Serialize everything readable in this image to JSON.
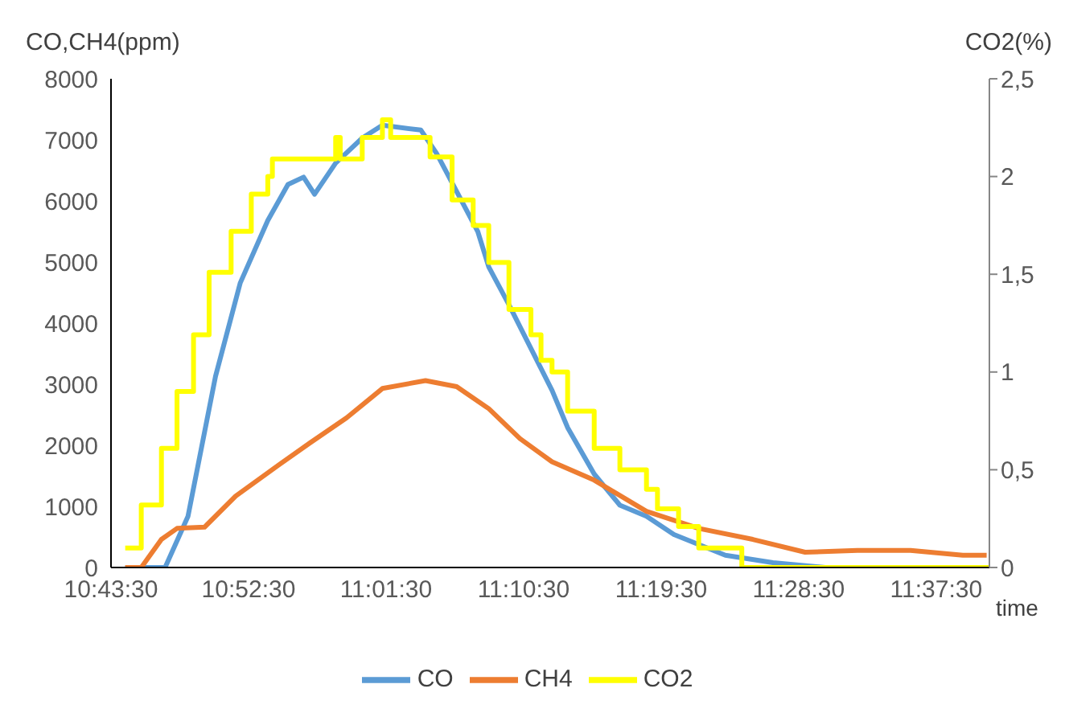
{
  "chart_data": {
    "type": "line",
    "xlabel": "time",
    "ylabel": "CO,CH4(ppm)",
    "y2label": "CO2(%)",
    "xlim": [
      10.725,
      11.683
    ],
    "xticks": [
      {
        "value": 10.725,
        "label": "10:43:30"
      },
      {
        "value": 10.875,
        "label": "10:52:30"
      },
      {
        "value": 11.025,
        "label": "11:01:30"
      },
      {
        "value": 11.175,
        "label": "11:10:30"
      },
      {
        "value": 11.325,
        "label": "11:19:30"
      },
      {
        "value": 11.475,
        "label": "11:28:30"
      },
      {
        "value": 11.625,
        "label": "11:37:30"
      }
    ],
    "ylim": [
      0,
      8000
    ],
    "yticks": [
      0,
      1000,
      2000,
      3000,
      4000,
      5000,
      6000,
      7000,
      8000
    ],
    "y2lim": [
      0,
      2.5
    ],
    "y2ticks": [
      0,
      {
        "value": 0.5,
        "label": "0,5"
      },
      1,
      {
        "value": 1.5,
        "label": "1,5"
      },
      2,
      {
        "value": 2.5,
        "label": "2,5"
      }
    ],
    "marker": "none",
    "legend": "bottom",
    "series": [
      {
        "name": "CO",
        "color": "#5b9bd5",
        "x": [
          10.7405,
          10.784,
          10.809,
          10.839,
          10.866,
          10.896,
          10.918,
          10.935,
          10.947,
          10.97,
          10.999,
          11.021,
          11.063,
          11.08,
          11.125,
          11.137,
          11.159,
          11.206,
          11.223,
          11.252,
          11.28,
          11.309,
          11.339,
          11.395,
          11.447,
          11.504
        ],
        "values": [
          0,
          0,
          840,
          3130,
          4660,
          5680,
          6270,
          6390,
          6110,
          6620,
          7030,
          7240,
          7160,
          6780,
          5500,
          4920,
          4300,
          2900,
          2290,
          1530,
          1020,
          840,
          540,
          200,
          80,
          0
        ]
      },
      {
        "name": "CH4",
        "color": "#ed7d31",
        "x": [
          10.7405,
          10.758,
          10.78,
          10.797,
          10.827,
          10.861,
          10.908,
          10.942,
          10.982,
          11.021,
          11.068,
          11.102,
          11.137,
          11.171,
          11.194,
          11.206,
          11.252,
          11.309,
          11.366,
          11.425,
          11.482,
          11.539,
          11.597,
          11.654,
          11.68
        ],
        "values": [
          0,
          0,
          460,
          640,
          660,
          1170,
          1680,
          2040,
          2450,
          2930,
          3060,
          2960,
          2600,
          2110,
          1860,
          1730,
          1430,
          920,
          640,
          460,
          250,
          280,
          280,
          200,
          200
        ]
      },
      {
        "name": "CO2",
        "color": "#ffff00",
        "type": "step",
        "axis": "y2",
        "x": [
          10.7405,
          10.758,
          10.78,
          10.797,
          10.815,
          10.832,
          10.856,
          10.878,
          10.896,
          10.901,
          10.97,
          10.975,
          10.999,
          11.021,
          11.03,
          11.073,
          11.097,
          11.12,
          11.137,
          11.159,
          11.183,
          11.194,
          11.206,
          11.223,
          11.252,
          11.28,
          11.309,
          11.321,
          11.344,
          11.366,
          11.413,
          11.499,
          11.683
        ],
        "values": [
          0.1,
          0.32,
          0.61,
          0.9,
          1.19,
          1.51,
          1.72,
          1.91,
          2.0,
          2.09,
          2.2,
          2.09,
          2.2,
          2.29,
          2.2,
          2.1,
          1.88,
          1.75,
          1.56,
          1.32,
          1.19,
          1.06,
          1.0,
          0.8,
          0.61,
          0.5,
          0.4,
          0.3,
          0.21,
          0.1,
          0.0,
          0,
          0
        ]
      }
    ]
  }
}
